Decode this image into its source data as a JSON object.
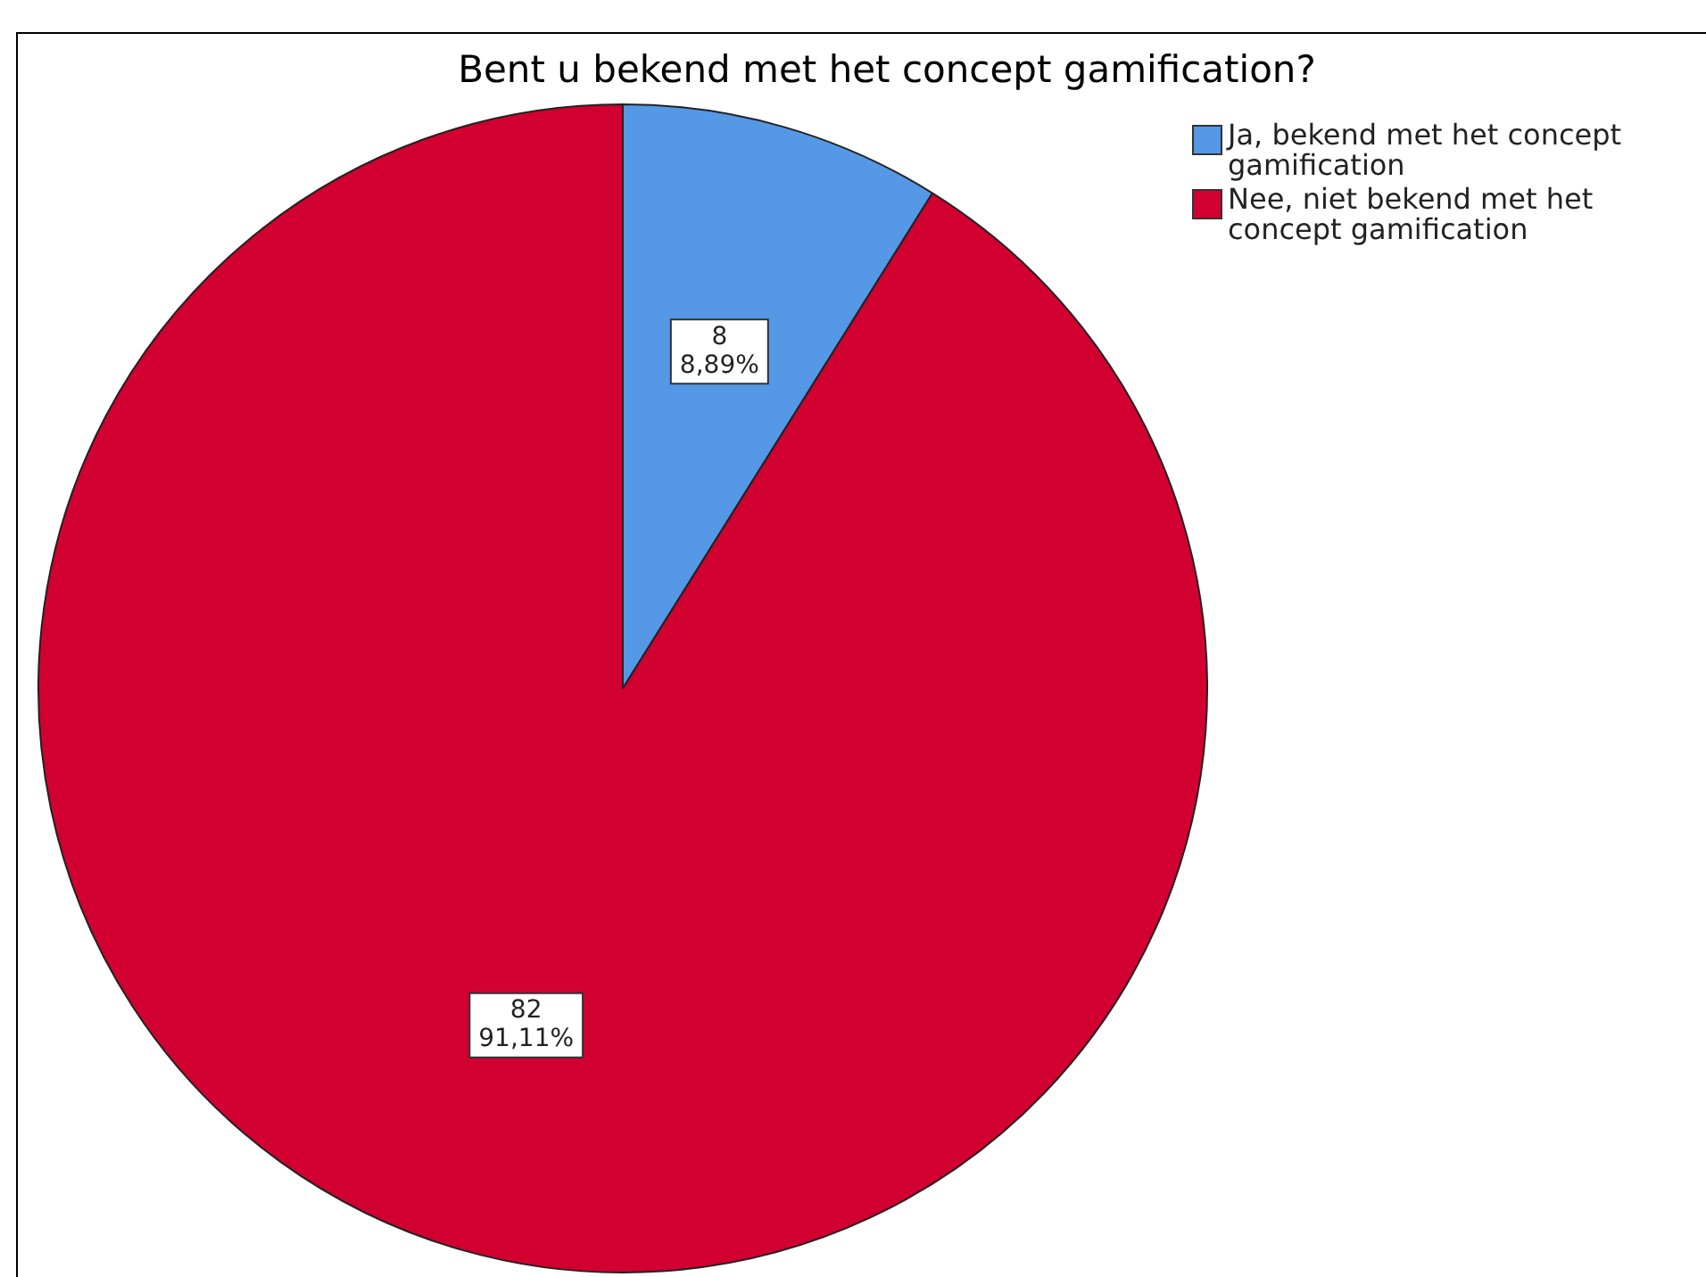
{
  "chart_data": {
    "type": "pie",
    "title": "Bent u bekend met het concept gamification?",
    "categories": [
      "Ja, bekend met het concept gamification",
      "Nee, niet bekend met het concept gamification"
    ],
    "values": [
      8,
      82
    ],
    "colors": [
      "#5498e6",
      "#d20030"
    ],
    "value_labels": [
      "8\n8,89%",
      "82\n91,11%"
    ],
    "legend": "top right"
  }
}
